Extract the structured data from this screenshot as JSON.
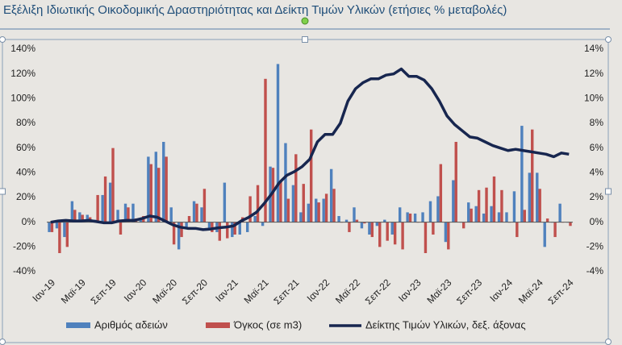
{
  "chart_data": {
    "type": "bar-line",
    "title": "Εξέλιξη Ιδιωτικής Οικοδομικής Δραστηριότητας και Δείκτη Τιμών Υλικών (ετήσιες % μεταβολές)",
    "categories": [
      "Ιαν-19",
      null,
      null,
      null,
      "Μαϊ-19",
      null,
      null,
      null,
      "Σεπ-19",
      null,
      null,
      null,
      "Ιαν-20",
      null,
      null,
      null,
      "Μαϊ-20",
      null,
      null,
      null,
      "Σεπ-20",
      null,
      null,
      null,
      "Ιαν-21",
      null,
      null,
      null,
      "Μαϊ-21",
      null,
      null,
      null,
      "Σεπ-21",
      null,
      null,
      null,
      "Ιαν-22",
      null,
      null,
      null,
      "Μαϊ-22",
      null,
      null,
      null,
      "Σεπ-22",
      null,
      null,
      null,
      "Ιαν-23",
      null,
      null,
      null,
      "Μαϊ-23",
      null,
      null,
      null,
      "Σεπ-23",
      null,
      null,
      null,
      "Ιαν-24",
      null,
      null,
      null,
      "Μαϊ-24",
      null,
      null,
      null,
      "Σεπ-24"
    ],
    "series": [
      {
        "name": "Αριθμός αδειών",
        "color": "#4f81bd",
        "type": "bar",
        "values": [
          -8,
          -5,
          -12,
          17,
          8,
          6,
          2,
          22,
          32,
          10,
          15,
          15,
          2,
          53,
          57,
          65,
          12,
          -22,
          -5,
          17,
          12,
          -5,
          -8,
          32,
          -12,
          -10,
          -8,
          5,
          -3,
          45,
          128,
          64,
          30,
          8,
          15,
          19,
          19,
          43,
          5,
          2,
          12,
          -5,
          -10,
          -3,
          2,
          -10,
          12,
          8,
          7,
          8,
          17,
          21,
          -16,
          34,
          0,
          16,
          13,
          7,
          13,
          8,
          8,
          25,
          78,
          40,
          40,
          -20,
          0,
          15,
          0
        ]
      },
      {
        "name": "Όγκος (σε m3)",
        "color": "#c0504d",
        "type": "bar",
        "values": [
          -8,
          -25,
          -20,
          10,
          6,
          4,
          22,
          37,
          60,
          -10,
          12,
          3,
          5,
          47,
          44,
          53,
          -18,
          -12,
          5,
          15,
          27,
          -8,
          -15,
          -13,
          -10,
          4,
          21,
          30,
          116,
          44,
          33,
          19,
          55,
          31,
          75,
          16,
          23,
          27,
          0,
          -8,
          2,
          -1,
          -12,
          -20,
          -15,
          -18,
          -22,
          7,
          0,
          -25,
          -10,
          47,
          -22,
          65,
          -5,
          11,
          26,
          28,
          37,
          26,
          0,
          -12,
          10,
          75,
          27,
          3,
          -12,
          0,
          -3
        ]
      },
      {
        "name": "Δείκτης Τιμών Υλικών, δεξ. άξονας",
        "color": "#17264f",
        "type": "line",
        "axis": "y2",
        "values": [
          0,
          0.1,
          0.15,
          0.1,
          0.1,
          0.15,
          0.05,
          -0.05,
          -0.05,
          0.1,
          0.15,
          0.15,
          0.3,
          0.5,
          0.4,
          0.1,
          -0.2,
          -0.4,
          -0.5,
          -0.5,
          -0.6,
          -0.55,
          -0.45,
          -0.4,
          -0.3,
          0.1,
          0.4,
          0.8,
          1.5,
          2.3,
          3.2,
          3.8,
          4.1,
          4.5,
          5.1,
          6.5,
          7.1,
          7.1,
          8.0,
          9.8,
          10.8,
          11.3,
          11.6,
          11.6,
          11.9,
          12.0,
          12.4,
          11.8,
          11.8,
          11.5,
          10.8,
          9.8,
          8.6,
          7.9,
          7.4,
          6.9,
          6.8,
          6.5,
          6.2,
          6.0,
          5.8,
          5.9,
          5.8,
          5.7,
          5.6,
          5.5,
          5.3,
          5.6,
          5.5
        ]
      }
    ],
    "ylim": [
      -40,
      140
    ],
    "yticks": [
      {
        "value": -40,
        "label": "-40%"
      },
      {
        "value": -20,
        "label": "-20%"
      },
      {
        "value": 0,
        "label": "0%"
      },
      {
        "value": 20,
        "label": "20%"
      },
      {
        "value": 40,
        "label": "40%"
      },
      {
        "value": 60,
        "label": "60%"
      },
      {
        "value": 80,
        "label": "80%"
      },
      {
        "value": 100,
        "label": "100%"
      },
      {
        "value": 120,
        "label": "120%"
      },
      {
        "value": 140,
        "label": "140%"
      }
    ],
    "y2lim": [
      -4,
      14
    ],
    "y2ticks": [
      {
        "value": -4,
        "label": "-4%"
      },
      {
        "value": -2,
        "label": "-2%"
      },
      {
        "value": 0,
        "label": "0%"
      },
      {
        "value": 2,
        "label": "2%"
      },
      {
        "value": 4,
        "label": "4%"
      },
      {
        "value": 6,
        "label": "6%"
      },
      {
        "value": 8,
        "label": "8%"
      },
      {
        "value": 10,
        "label": "10%"
      },
      {
        "value": 12,
        "label": "12%"
      },
      {
        "value": 14,
        "label": "14%"
      }
    ],
    "grid": false,
    "legend": "bottom"
  }
}
